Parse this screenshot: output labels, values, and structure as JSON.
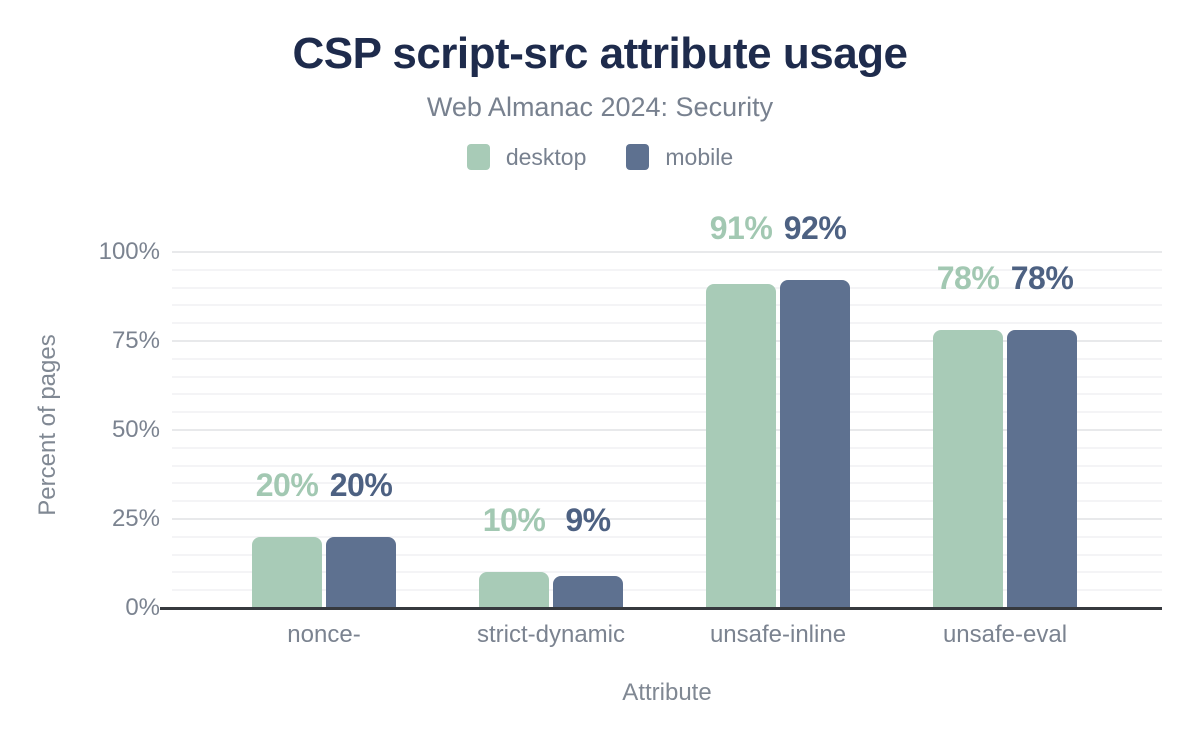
{
  "title": "CSP script-src attribute usage",
  "subtitle": "Web Almanac 2024: Security",
  "legend": {
    "items": [
      {
        "label": "desktop",
        "color": "#a8cbb7"
      },
      {
        "label": "mobile",
        "color": "#5e7190"
      }
    ]
  },
  "axes": {
    "y_title": "Percent of pages",
    "x_title": "Attribute",
    "y_ticks": [
      "0%",
      "25%",
      "50%",
      "75%",
      "100%"
    ]
  },
  "colors": {
    "background": "#ffffff",
    "title": "#1e2b4c",
    "muted_text": "#78818f",
    "axis_line": "#36393e",
    "grid_major": "#e8e9eb",
    "grid_minor": "#f4f4f6",
    "desktop_bar": "#a8cbb7",
    "desktop_label": "#a2c8b2",
    "mobile_bar": "#5e7190",
    "mobile_label": "#4d6182"
  },
  "chart_data": {
    "type": "bar",
    "title": "CSP script-src attribute usage",
    "subtitle": "Web Almanac 2024: Security",
    "xlabel": "Attribute",
    "ylabel": "Percent of pages",
    "ylim": [
      0,
      100
    ],
    "y_tick_step": 25,
    "minor_grid_step": 5,
    "grid": true,
    "legend_position": "top",
    "categories": [
      "nonce-",
      "strict-dynamic",
      "unsafe-inline",
      "unsafe-eval"
    ],
    "series": [
      {
        "name": "desktop",
        "color": "#a8cbb7",
        "label_color": "#a2c8b2",
        "values": [
          20,
          10,
          91,
          78
        ],
        "labels": [
          "20%",
          "10%",
          "91%",
          "78%"
        ]
      },
      {
        "name": "mobile",
        "color": "#5e7190",
        "label_color": "#4d6182",
        "values": [
          20,
          9,
          92,
          78
        ],
        "labels": [
          "20%",
          "9%",
          "92%",
          "78%"
        ]
      }
    ]
  }
}
